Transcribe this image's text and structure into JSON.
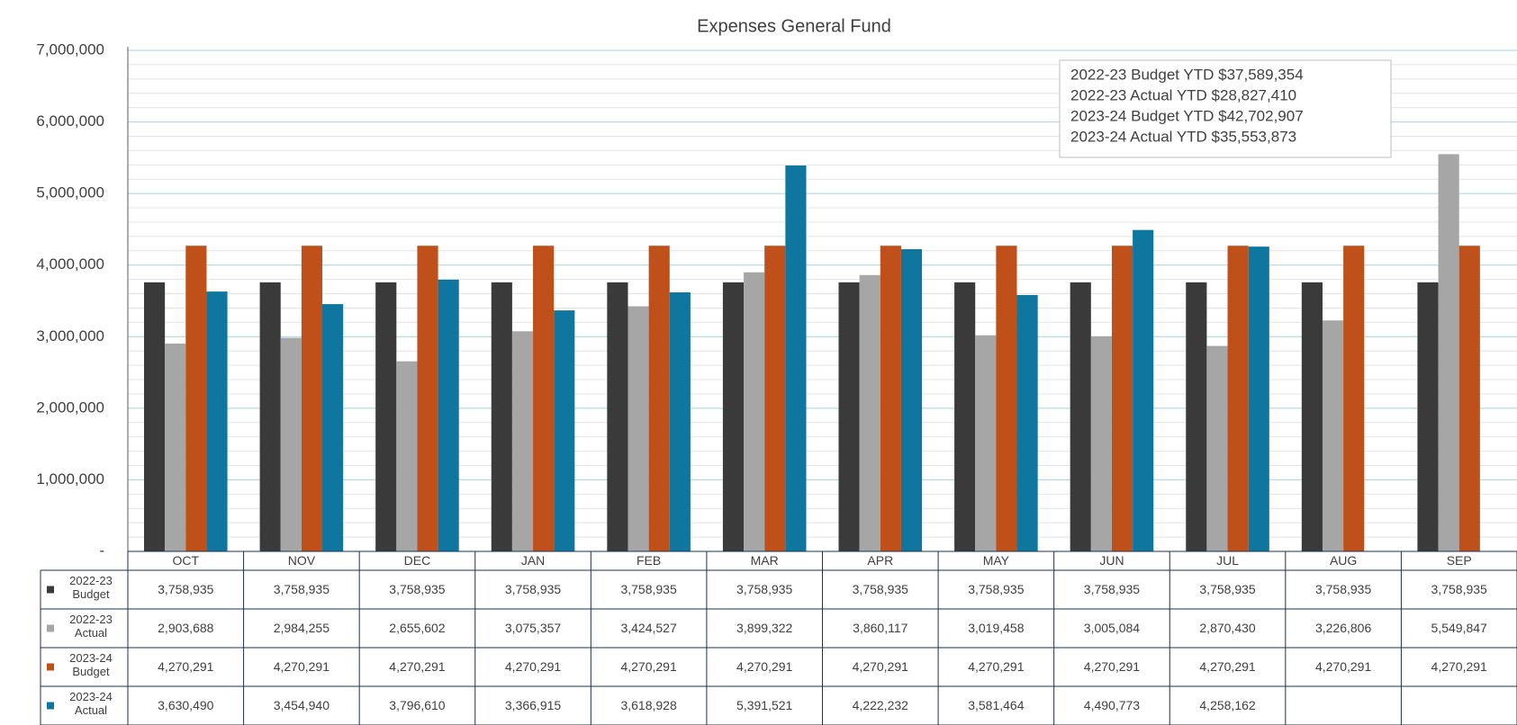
{
  "chart_data": {
    "type": "bar",
    "title": "Expenses General Fund",
    "categories": [
      "OCT",
      "NOV",
      "DEC",
      "JAN",
      "FEB",
      "MAR",
      "APR",
      "MAY",
      "JUN",
      "JUL",
      "AUG",
      "SEP"
    ],
    "series": [
      {
        "name": "2022-23 Budget",
        "color": "#3a3a3a",
        "values": [
          3758935,
          3758935,
          3758935,
          3758935,
          3758935,
          3758935,
          3758935,
          3758935,
          3758935,
          3758935,
          3758935,
          3758935
        ],
        "value_labels": [
          "3,758,935",
          "3,758,935",
          "3,758,935",
          "3,758,935",
          "3,758,935",
          "3,758,935",
          "3,758,935",
          "3,758,935",
          "3,758,935",
          "3,758,935",
          "3,758,935",
          "3,758,935"
        ]
      },
      {
        "name": "2022-23 Actual",
        "color": "#a6a6a6",
        "values": [
          2903688,
          2984255,
          2655602,
          3075357,
          3424527,
          3899322,
          3860117,
          3019458,
          3005084,
          2870430,
          3226806,
          5549847
        ],
        "value_labels": [
          "2,903,688",
          "2,984,255",
          "2,655,602",
          "3,075,357",
          "3,424,527",
          "3,899,322",
          "3,860,117",
          "3,019,458",
          "3,005,084",
          "2,870,430",
          "3,226,806",
          "5,549,847"
        ]
      },
      {
        "name": "2023-24 Budget",
        "color": "#c0501a",
        "values": [
          4270291,
          4270291,
          4270291,
          4270291,
          4270291,
          4270291,
          4270291,
          4270291,
          4270291,
          4270291,
          4270291,
          4270291
        ],
        "value_labels": [
          "4,270,291",
          "4,270,291",
          "4,270,291",
          "4,270,291",
          "4,270,291",
          "4,270,291",
          "4,270,291",
          "4,270,291",
          "4,270,291",
          "4,270,291",
          "4,270,291",
          "4,270,291"
        ]
      },
      {
        "name": "2023-24 Actual",
        "color": "#0f76a0",
        "values": [
          3630490,
          3454940,
          3796610,
          3366915,
          3618928,
          5391521,
          4222232,
          3581464,
          4490773,
          4258162,
          null,
          null
        ],
        "value_labels": [
          "3,630,490",
          "3,454,940",
          "3,796,610",
          "3,366,915",
          "3,618,928",
          "5,391,521",
          "4,222,232",
          "3,581,464",
          "4,490,773",
          "4,258,162",
          null,
          null
        ]
      }
    ],
    "ylim": [
      0,
      7000000
    ],
    "yticks": [
      {
        "value": 0,
        "label": "-"
      },
      {
        "value": 1000000,
        "label": "1,000,000"
      },
      {
        "value": 2000000,
        "label": "2,000,000"
      },
      {
        "value": 3000000,
        "label": "3,000,000"
      },
      {
        "value": 4000000,
        "label": "4,000,000"
      },
      {
        "value": 5000000,
        "label": "5,000,000"
      },
      {
        "value": 6000000,
        "label": "6,000,000"
      },
      {
        "value": 7000000,
        "label": "7,000,000"
      }
    ],
    "grid": true,
    "annotations": [
      "2022-23 Budget YTD $37,589,354",
      "2022-23 Actual YTD $28,827,410",
      "2023-24 Budget YTD $42,702,907",
      "2023-24 Actual YTD $35,553,873"
    ]
  }
}
